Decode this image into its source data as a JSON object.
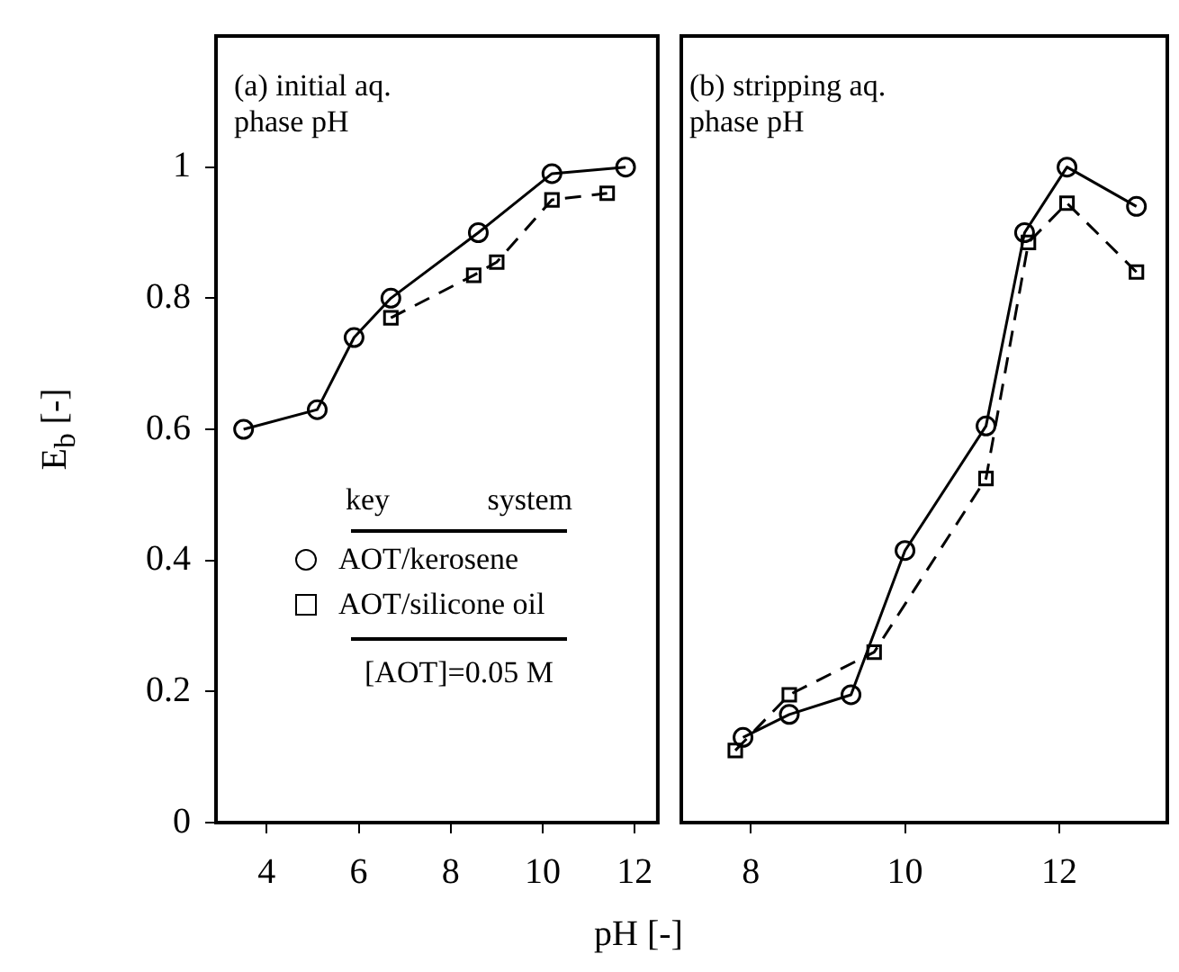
{
  "chart_data": [
    {
      "type": "line",
      "title": "(a) initial aq. phase pH",
      "xlabel": "pH [-]",
      "ylabel": "E$_{b}$ [-]",
      "legend_title": "key system",
      "legend": "bottom",
      "annotations": [
        "[AOT]=0.05 M"
      ],
      "xlim": [
        2.9,
        12.5
      ],
      "xticks": [
        4,
        6,
        8,
        10,
        12
      ],
      "ylim": [
        0,
        1.2
      ],
      "yticks": [
        0,
        0.2,
        0.4,
        0.6,
        0.8,
        1
      ],
      "series": [
        {
          "name": "AOT/kerosene",
          "color": "#000000",
          "marker": "circle",
          "line_style": "solid",
          "x": [
            3.5,
            5.1,
            5.9,
            6.7,
            8.6,
            10.2,
            11.8
          ],
          "values": [
            0.6,
            0.63,
            0.74,
            0.8,
            0.9,
            0.99,
            1.0
          ]
        },
        {
          "name": "AOT/silicone oil",
          "color": "#000000",
          "marker": "square",
          "line_style": "dashed",
          "x": [
            6.7,
            8.5,
            9.0,
            10.2,
            11.4
          ],
          "values": [
            0.77,
            0.835,
            0.855,
            0.95,
            0.96
          ]
        }
      ]
    },
    {
      "type": "line",
      "title": "(b) stripping aq. phase pH",
      "tick_labels": "x",
      "xlim": [
        7.1,
        13.4
      ],
      "xticks": [
        8,
        10,
        12
      ],
      "ylim": [
        0,
        1.2
      ],
      "yticks": [
        0,
        0.2,
        0.4,
        0.6,
        0.8,
        1
      ],
      "series": [
        {
          "color": "#000000",
          "marker": "circle",
          "line_style": "solid",
          "x": [
            7.9,
            8.5,
            9.3,
            10.0,
            11.05,
            11.55,
            12.1,
            13.0
          ],
          "values": [
            0.13,
            0.165,
            0.195,
            0.415,
            0.605,
            0.9,
            1.0,
            0.94
          ]
        },
        {
          "color": "#000000",
          "marker": "square",
          "line_style": "dashed",
          "x": [
            7.8,
            8.5,
            9.6,
            11.05,
            11.6,
            12.1,
            13.0
          ],
          "values": [
            0.11,
            0.195,
            0.26,
            0.525,
            0.885,
            0.945,
            0.84
          ]
        }
      ]
    }
  ]
}
